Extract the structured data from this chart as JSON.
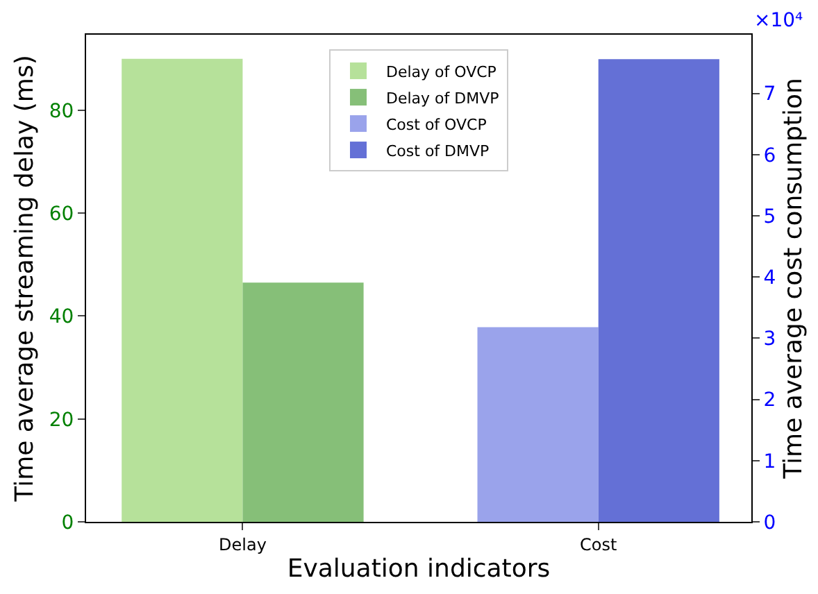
{
  "chart_data": {
    "type": "bar",
    "xlabel": "Evaluation indicators",
    "ylabel": "Time average streaming delay (ms)",
    "y2label": "Time average cost consumption",
    "categories": [
      "Delay",
      "Cost"
    ],
    "series": [
      {
        "name": "Delay of OVCP",
        "color": "#b6e19a",
        "values": [
          90,
          null
        ]
      },
      {
        "name": "Delay of DMVP",
        "color": "#86bf78",
        "values": [
          46.5,
          null
        ]
      },
      {
        "name": "Cost of OVCP",
        "color": "#9aa3eb",
        "values": [
          null,
          3.18
        ],
        "axis": "y2"
      },
      {
        "name": "Cost of DMVP",
        "color": "#6470d6",
        "values": [
          null,
          7.56
        ],
        "axis": "y2"
      }
    ],
    "ylim": [
      0,
      94.7
    ],
    "yticks": [
      0,
      20,
      40,
      60,
      80
    ],
    "y2lim": [
      0,
      7.96
    ],
    "y2ticks": [
      0,
      1,
      2,
      3,
      4,
      5,
      6,
      7
    ],
    "annotations": [
      "×10⁴"
    ],
    "legend": "top"
  }
}
